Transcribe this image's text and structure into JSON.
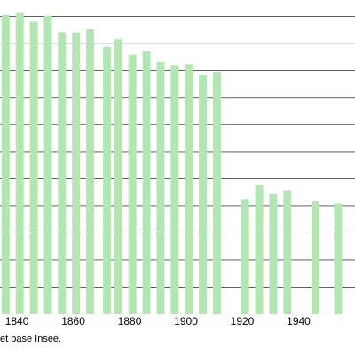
{
  "chart_data": {
    "type": "bar",
    "title": "",
    "xlabel": "",
    "ylabel": "",
    "x_tick_labels": [
      "1840",
      "1860",
      "1880",
      "1900",
      "1920",
      "1940"
    ],
    "x_range": [
      1834,
      1960
    ],
    "y_range": [
      0,
      1160
    ],
    "grid": true,
    "bar_color": "#b3e6b3",
    "gridline_values": [
      100,
      200,
      300,
      400,
      500,
      600,
      700,
      800,
      900,
      1000,
      1100
    ],
    "series": [
      {
        "x": [
          1836,
          1841,
          1846,
          1851,
          1856,
          1861,
          1866,
          1872,
          1876,
          1881,
          1886,
          1891,
          1896,
          1901,
          1906,
          1911,
          1921,
          1926,
          1931,
          1936,
          1946,
          1954
        ],
        "values": [
          1105,
          1112,
          1080,
          1102,
          1041,
          1040,
          1052,
          987,
          1015,
          958,
          970,
          931,
          920,
          923,
          885,
          895,
          425,
          477,
          443,
          457,
          416,
          408
        ]
      }
    ]
  },
  "source_note": "et base Insee."
}
